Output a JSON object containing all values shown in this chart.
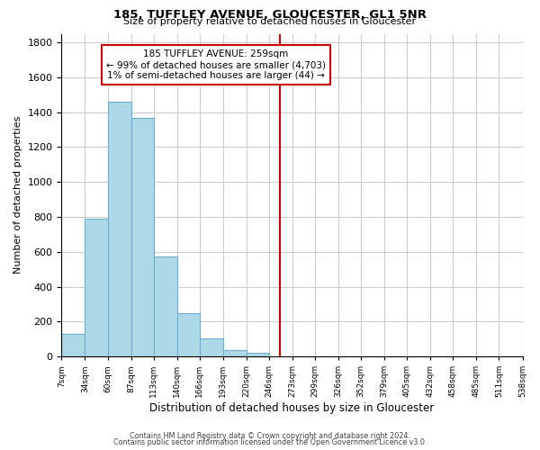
{
  "title": "185, TUFFLEY AVENUE, GLOUCESTER, GL1 5NR",
  "subtitle": "Size of property relative to detached houses in Gloucester",
  "xlabel": "Distribution of detached houses by size in Gloucester",
  "ylabel": "Number of detached properties",
  "bar_edges": [
    7,
    34,
    60,
    87,
    113,
    140,
    166,
    193,
    220,
    246,
    273,
    299,
    326,
    352,
    379,
    405,
    432,
    458,
    485,
    511,
    538
  ],
  "bar_heights": [
    130,
    790,
    1460,
    1370,
    575,
    250,
    105,
    35,
    20,
    0,
    0,
    0,
    0,
    0,
    0,
    0,
    0,
    0,
    0,
    0
  ],
  "bar_color": "#add8e6",
  "bar_edge_color": "#6baed6",
  "property_line_x": 259,
  "property_line_color": "#cc0000",
  "annotation_title": "185 TUFFLEY AVENUE: 259sqm",
  "annotation_line1": "← 99% of detached houses are smaller (4,703)",
  "annotation_line2": "1% of semi-detached houses are larger (44) →",
  "ylim": [
    0,
    1850
  ],
  "yticks": [
    0,
    200,
    400,
    600,
    800,
    1000,
    1200,
    1400,
    1600,
    1800
  ],
  "tick_labels": [
    "7sqm",
    "34sqm",
    "60sqm",
    "87sqm",
    "113sqm",
    "140sqm",
    "166sqm",
    "193sqm",
    "220sqm",
    "246sqm",
    "273sqm",
    "299sqm",
    "326sqm",
    "352sqm",
    "379sqm",
    "405sqm",
    "432sqm",
    "458sqm",
    "485sqm",
    "511sqm",
    "538sqm"
  ],
  "footer_line1": "Contains HM Land Registry data © Crown copyright and database right 2024.",
  "footer_line2": "Contains public sector information licensed under the Open Government Licence v3.0.",
  "background_color": "#ffffff",
  "grid_color": "#cccccc"
}
